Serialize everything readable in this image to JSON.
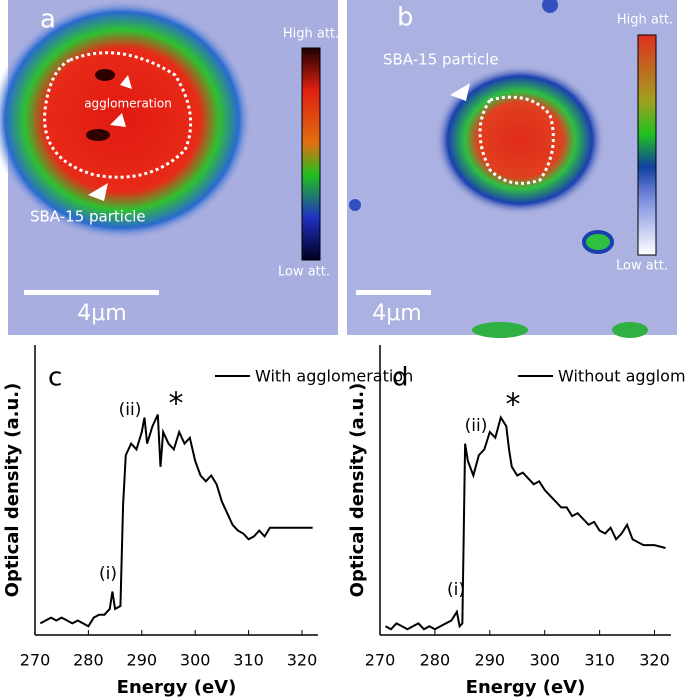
{
  "images": [
    {
      "label": "a",
      "colorbar_high": "High att.",
      "colorbar_low": "Low att.",
      "annotations": [
        "agglomeration",
        "SBA-15 particle"
      ],
      "scale_bar": "4μm"
    },
    {
      "label": "b",
      "colorbar_high": "High att.",
      "colorbar_low": "Low att.",
      "annotations": [
        "SBA-15 particle"
      ],
      "scale_bar": "4μm"
    }
  ],
  "chart_data": [
    {
      "type": "line",
      "panel_label": "c",
      "x_label": "Energy (eV)",
      "y_label": "Optical density (a.u.)",
      "xlim": [
        270,
        323
      ],
      "xticks": [
        270,
        280,
        290,
        300,
        310,
        320
      ],
      "ylim": [
        0,
        1
      ],
      "x": [
        271,
        272,
        273,
        274,
        275,
        276,
        277,
        278,
        279,
        280,
        281,
        282,
        283,
        284,
        284.5,
        285,
        286,
        286.5,
        287,
        288,
        289,
        290,
        290.5,
        291,
        292,
        293,
        293.5,
        294,
        295,
        296,
        297,
        298,
        299,
        300,
        301,
        302,
        303,
        304,
        305,
        306,
        307,
        308,
        309,
        310,
        311,
        312,
        313,
        314,
        315,
        316,
        317,
        318,
        319,
        320,
        322
      ],
      "series": [
        {
          "name": "With agglomeration",
          "color": "#000000",
          "values": [
            0.04,
            0.05,
            0.06,
            0.05,
            0.06,
            0.05,
            0.04,
            0.05,
            0.04,
            0.03,
            0.06,
            0.07,
            0.07,
            0.09,
            0.15,
            0.09,
            0.1,
            0.45,
            0.62,
            0.66,
            0.64,
            0.7,
            0.75,
            0.66,
            0.72,
            0.76,
            0.58,
            0.7,
            0.66,
            0.64,
            0.7,
            0.66,
            0.68,
            0.6,
            0.55,
            0.53,
            0.55,
            0.52,
            0.46,
            0.42,
            0.38,
            0.36,
            0.35,
            0.33,
            0.34,
            0.36,
            0.34,
            0.37,
            0.37,
            0.37,
            0.37,
            0.37,
            0.37,
            0.37,
            0.37
          ]
        }
      ],
      "annotations": [
        "(ii)",
        "*",
        "(i)"
      ]
    },
    {
      "type": "line",
      "panel_label": "d",
      "x_label": "Energy (eV)",
      "y_label": "Optical density (a.u.)",
      "xlim": [
        270,
        323
      ],
      "xticks": [
        270,
        280,
        290,
        300,
        310,
        320
      ],
      "ylim": [
        0,
        1
      ],
      "x": [
        271,
        272,
        273,
        274,
        275,
        276,
        277,
        278,
        279,
        280,
        281,
        282,
        283,
        284,
        284.5,
        285,
        285.5,
        286,
        287,
        288,
        289,
        290,
        291,
        292,
        293,
        293.5,
        294,
        295,
        296,
        297,
        298,
        299,
        300,
        301,
        302,
        303,
        304,
        305,
        306,
        307,
        308,
        309,
        310,
        311,
        312,
        313,
        314,
        315,
        316,
        317,
        318,
        319,
        320,
        322
      ],
      "series": [
        {
          "name": "Without agglomeration",
          "color": "#000000",
          "values": [
            0.03,
            0.02,
            0.04,
            0.03,
            0.02,
            0.03,
            0.04,
            0.02,
            0.03,
            0.02,
            0.03,
            0.04,
            0.05,
            0.08,
            0.03,
            0.04,
            0.66,
            0.6,
            0.55,
            0.62,
            0.64,
            0.7,
            0.68,
            0.75,
            0.72,
            0.64,
            0.58,
            0.55,
            0.56,
            0.54,
            0.52,
            0.53,
            0.5,
            0.48,
            0.46,
            0.44,
            0.44,
            0.41,
            0.42,
            0.4,
            0.38,
            0.39,
            0.36,
            0.35,
            0.37,
            0.33,
            0.35,
            0.38,
            0.33,
            0.32,
            0.31,
            0.31,
            0.31,
            0.3
          ]
        }
      ],
      "annotations": [
        "(ii)",
        "*",
        "(i)"
      ]
    }
  ]
}
